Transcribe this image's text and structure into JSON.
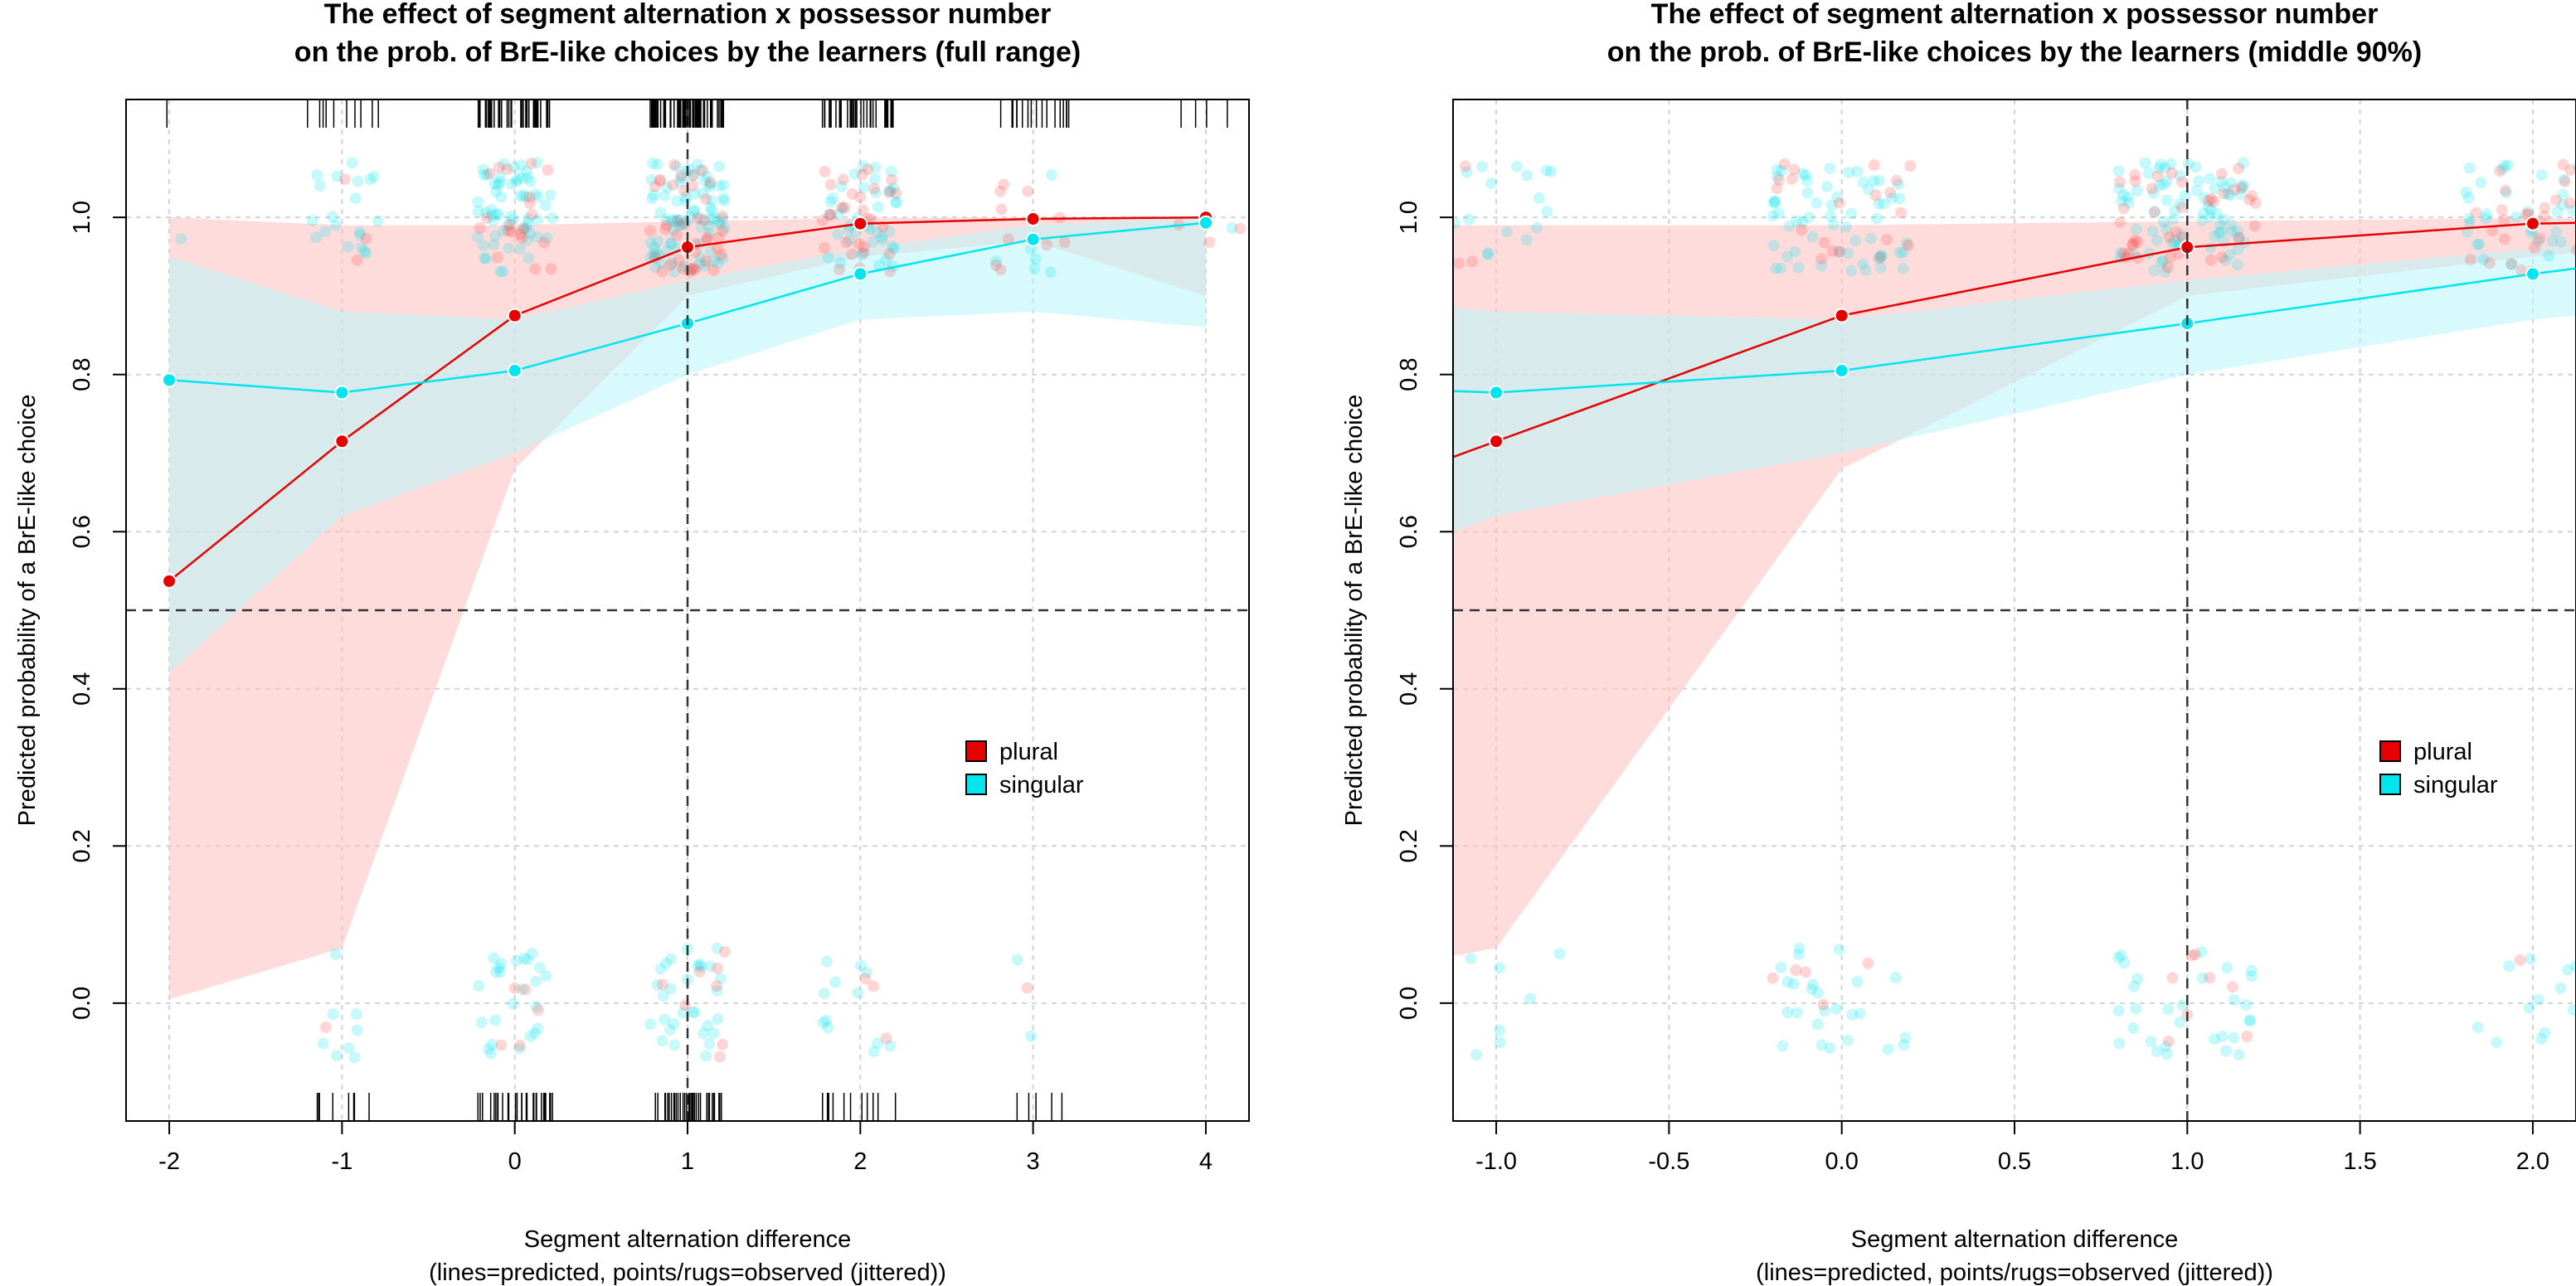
{
  "chart_data": [
    {
      "type": "line",
      "title": [
        "The effect of segment alternation x possessor number",
        "on the prob. of BrE-like choices by the learners (full range)"
      ],
      "xlabel": [
        "Segment alternation difference",
        "(lines=predicted, points/rugs=observed (jittered))"
      ],
      "ylabel": "Predicted probability of a BrE-like choice",
      "xlim": [
        -2.25,
        4.25
      ],
      "ylim": [
        -0.15,
        1.15
      ],
      "x_ticks": [
        -2,
        -1,
        0,
        1,
        2,
        3,
        4
      ],
      "x_tick_labels": [
        "-2",
        "-1",
        "0",
        "1",
        "2",
        "3",
        "4"
      ],
      "y_ticks": [
        0.0,
        0.2,
        0.4,
        0.6,
        0.8,
        1.0
      ],
      "y_tick_labels": [
        "0.0",
        "0.2",
        "0.4",
        "0.6",
        "0.8",
        "1.0"
      ],
      "grid": true,
      "reference_lines": {
        "h": 0.5,
        "v": 1
      },
      "legend_position": "right",
      "series": [
        {
          "name": "plural",
          "color": "#e60000",
          "band_color": "#ffc0c0",
          "x": [
            -2,
            -1,
            0,
            1,
            2,
            3,
            4
          ],
          "y": [
            0.537,
            0.715,
            0.875,
            0.962,
            0.992,
            0.998,
            1.0
          ],
          "lower": [
            0.005,
            0.07,
            0.68,
            0.9,
            0.95,
            0.97,
            0.9
          ],
          "upper": [
            1.0,
            0.99,
            0.99,
            0.995,
            0.999,
            1.0,
            1.0
          ]
        },
        {
          "name": "singular",
          "color": "#00e5ee",
          "band_color": "#b8f6fa",
          "x": [
            -2,
            -1,
            0,
            1,
            2,
            3,
            4
          ],
          "y": [
            0.793,
            0.777,
            0.805,
            0.865,
            0.928,
            0.972,
            0.993
          ],
          "lower": [
            0.42,
            0.62,
            0.7,
            0.8,
            0.87,
            0.88,
            0.86
          ],
          "upper": [
            0.95,
            0.88,
            0.87,
            0.92,
            0.96,
            0.99,
            0.999
          ]
        }
      ],
      "observed": {
        "x": [
          -2,
          -1,
          0,
          1,
          2,
          3,
          4
        ],
        "n_plural_1": [
          0,
          3,
          20,
          40,
          30,
          10,
          3
        ],
        "n_singular_1": [
          1,
          20,
          60,
          80,
          40,
          6,
          1
        ],
        "n_plural_0": [
          0,
          1,
          5,
          8,
          3,
          1,
          0
        ],
        "n_singular_0": [
          0,
          8,
          25,
          30,
          12,
          2,
          0
        ],
        "rug_top_n": [
          1,
          10,
          40,
          70,
          35,
          18,
          4
        ],
        "rug_bottom_n": [
          0,
          8,
          30,
          38,
          12,
          5,
          0
        ]
      }
    },
    {
      "type": "line",
      "title": [
        "The effect of segment alternation x possessor number",
        "on the prob. of BrE-like choices by the learners (middle 90%)"
      ],
      "xlabel": [
        "Segment alternation difference",
        "(lines=predicted, points/rugs=observed (jittered))"
      ],
      "ylabel": "Predicted probability of a BrE-like choice",
      "xlim": [
        -1.125,
        2.125
      ],
      "ylim": [
        -0.15,
        1.15
      ],
      "x_ticks": [
        -1.0,
        -0.5,
        0.0,
        0.5,
        1.0,
        1.5,
        2.0
      ],
      "x_tick_labels": [
        "-1.0",
        "-0.5",
        "0.0",
        "0.5",
        "1.0",
        "1.5",
        "2.0"
      ],
      "y_ticks": [
        0.0,
        0.2,
        0.4,
        0.6,
        0.8,
        1.0
      ],
      "y_tick_labels": [
        "0.0",
        "0.2",
        "0.4",
        "0.6",
        "0.8",
        "1.0"
      ],
      "grid": true,
      "reference_lines": {
        "h": 0.5,
        "v": 1
      },
      "legend_position": "right",
      "series": [
        {
          "name": "plural",
          "color": "#e60000",
          "band_color": "#ffc0c0",
          "x": [
            -1.125,
            -1,
            0,
            1,
            2,
            2.125
          ],
          "y": [
            0.695,
            0.715,
            0.875,
            0.962,
            0.992,
            0.993
          ],
          "lower": [
            0.06,
            0.07,
            0.68,
            0.9,
            0.95,
            0.955
          ],
          "upper": [
            0.99,
            0.99,
            0.99,
            0.995,
            0.999,
            0.999
          ]
        },
        {
          "name": "singular",
          "color": "#00e5ee",
          "band_color": "#b8f6fa",
          "x": [
            -1.125,
            -1,
            0,
            1,
            2,
            2.125
          ],
          "y": [
            0.779,
            0.777,
            0.805,
            0.865,
            0.928,
            0.935
          ],
          "lower": [
            0.6,
            0.62,
            0.7,
            0.8,
            0.87,
            0.875
          ],
          "upper": [
            0.885,
            0.88,
            0.87,
            0.92,
            0.96,
            0.965
          ]
        }
      ],
      "observed": {
        "x": [
          -1,
          0,
          1,
          2
        ],
        "n_plural_1": [
          3,
          20,
          40,
          30
        ],
        "n_singular_1": [
          20,
          60,
          80,
          40
        ],
        "n_plural_0": [
          1,
          5,
          8,
          3
        ],
        "n_singular_0": [
          8,
          25,
          30,
          12
        ],
        "rug_top_n": [
          0,
          0,
          0,
          0
        ],
        "rug_bottom_n": [
          0,
          0,
          0,
          0
        ]
      }
    }
  ]
}
